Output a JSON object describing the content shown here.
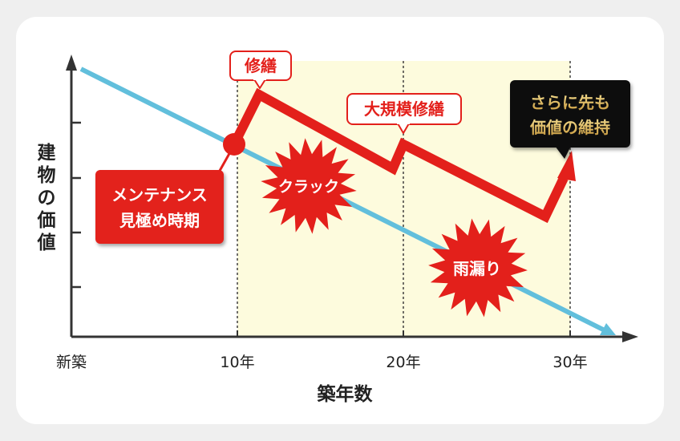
{
  "x_axis": {
    "title": "築年数",
    "ticks": [
      "新築",
      "10年",
      "20年",
      "30年"
    ]
  },
  "y_axis": {
    "title": "建物の価値"
  },
  "annotations": {
    "maintenance_timing": [
      "メンテナンス",
      "見極め時期"
    ],
    "repair": "修繕",
    "major_repair": "大規模修繕",
    "maintain_value": [
      "さらに先も",
      "価値の維持"
    ],
    "crack": "クラック",
    "leak": "雨漏り"
  },
  "colors": {
    "red": "#e3201b",
    "blue_line": "#62bfdc",
    "shade": "#fdfbdd",
    "gold": "#d7b35a",
    "axis": "#333333"
  }
}
